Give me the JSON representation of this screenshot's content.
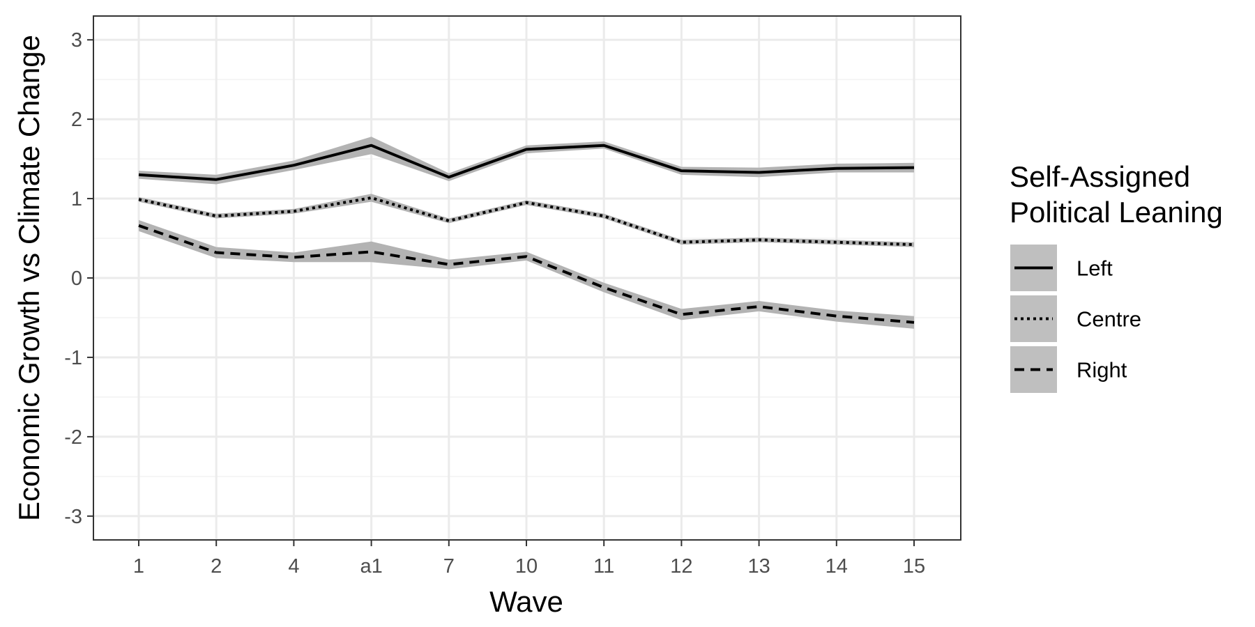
{
  "chart_data": {
    "type": "line",
    "xlabel": "Wave",
    "ylabel": "Economic Growth vs Climate Change",
    "categories": [
      "1",
      "2",
      "4",
      "a1",
      "7",
      "10",
      "11",
      "12",
      "13",
      "14",
      "15"
    ],
    "ylim": [
      -3.3,
      3.3
    ],
    "yticks": [
      -3,
      -2,
      -1,
      0,
      1,
      2,
      3
    ],
    "ytick_labels": [
      "-3",
      "-2",
      "-1",
      "0",
      "1",
      "2",
      "3"
    ],
    "grid": true,
    "ribbons": "confidence band per series",
    "legend": {
      "title_lines": [
        "Self-Assigned",
        "Political Leaning"
      ],
      "placement": "right"
    },
    "series": [
      {
        "name": "Left",
        "linetype": "solid",
        "values": [
          1.3,
          1.24,
          1.42,
          1.67,
          1.27,
          1.62,
          1.67,
          1.35,
          1.33,
          1.38,
          1.39
        ],
        "lower": [
          1.25,
          1.18,
          1.36,
          1.56,
          1.22,
          1.57,
          1.63,
          1.3,
          1.27,
          1.33,
          1.33
        ],
        "upper": [
          1.35,
          1.3,
          1.48,
          1.78,
          1.32,
          1.67,
          1.72,
          1.4,
          1.39,
          1.44,
          1.45
        ]
      },
      {
        "name": "Centre",
        "linetype": "dotted",
        "values": [
          0.99,
          0.78,
          0.84,
          1.01,
          0.72,
          0.95,
          0.78,
          0.45,
          0.48,
          0.45,
          0.42
        ],
        "lower": [
          0.96,
          0.75,
          0.81,
          0.96,
          0.69,
          0.92,
          0.75,
          0.42,
          0.45,
          0.42,
          0.39
        ],
        "upper": [
          1.02,
          0.81,
          0.87,
          1.06,
          0.75,
          0.98,
          0.81,
          0.48,
          0.51,
          0.48,
          0.45
        ]
      },
      {
        "name": "Right",
        "linetype": "dashed",
        "values": [
          0.66,
          0.32,
          0.26,
          0.33,
          0.17,
          0.27,
          -0.12,
          -0.46,
          -0.36,
          -0.48,
          -0.56
        ],
        "lower": [
          0.59,
          0.25,
          0.2,
          0.2,
          0.11,
          0.22,
          -0.18,
          -0.53,
          -0.42,
          -0.55,
          -0.64
        ],
        "upper": [
          0.73,
          0.39,
          0.32,
          0.46,
          0.23,
          0.33,
          -0.06,
          -0.39,
          -0.29,
          -0.41,
          -0.48
        ]
      }
    ]
  },
  "colors": {
    "line": "#000000",
    "ribbon": "#b3b3b3",
    "grid_major": "#ebebeb",
    "grid_minor": "#f5f5f5",
    "panel_border": "#333333",
    "legend_key_bg": "#bfbfbf"
  }
}
